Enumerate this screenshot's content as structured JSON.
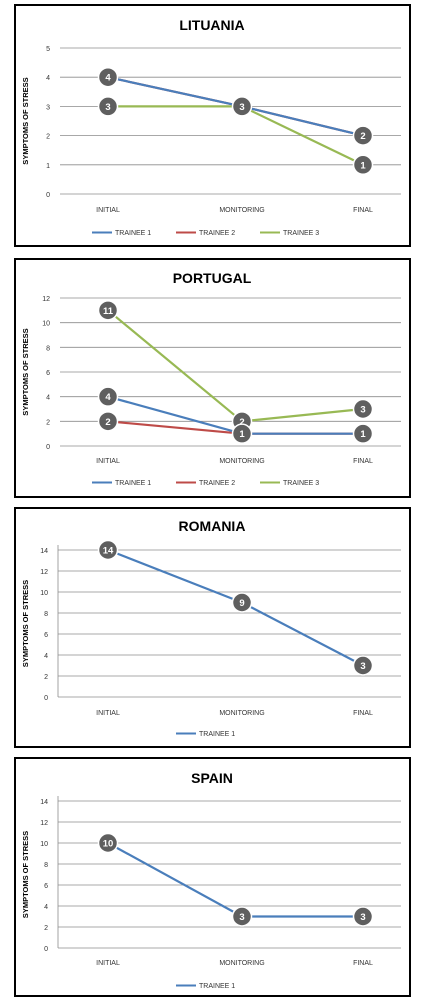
{
  "chart_data": [
    {
      "type": "line",
      "title": "LITUANIA",
      "ylabel": "SYMPTOMS OF STRESS",
      "xlabel": "",
      "categories": [
        "INITIAL",
        "MONITORING",
        "FINAL"
      ],
      "ylim": [
        0,
        5
      ],
      "yticks": [
        0,
        1,
        2,
        3,
        4,
        5
      ],
      "grid": true,
      "legend_position": "bottom",
      "series": [
        {
          "name": "TRAINEE 1",
          "color": "#4a7ebb",
          "values": [
            4,
            3,
            2
          ]
        },
        {
          "name": "TRAINEE 2",
          "color": "#be4b48",
          "values": [
            4,
            3,
            2
          ]
        },
        {
          "name": "TRAINEE 3",
          "color": "#98b954",
          "values": [
            3,
            3,
            1
          ]
        }
      ],
      "data_labels": [
        {
          "category": "INITIAL",
          "value": 4
        },
        {
          "category": "INITIAL",
          "value": 3
        },
        {
          "category": "MONITORING",
          "value": 3
        },
        {
          "category": "FINAL",
          "value": 2
        },
        {
          "category": "FINAL",
          "value": 1
        }
      ]
    },
    {
      "type": "line",
      "title": "PORTUGAL",
      "ylabel": "SYMPTOMS OF STRESS",
      "xlabel": "",
      "categories": [
        "INITIAL",
        "MONITORING",
        "FINAL"
      ],
      "ylim": [
        0,
        12
      ],
      "yticks": [
        0,
        2,
        4,
        6,
        8,
        10,
        12
      ],
      "grid": true,
      "legend_position": "bottom",
      "series": [
        {
          "name": "TRAINEE 1",
          "color": "#4a7ebb",
          "values": [
            4,
            1,
            1
          ]
        },
        {
          "name": "TRAINEE 2",
          "color": "#be4b48",
          "values": [
            2,
            1,
            1
          ]
        },
        {
          "name": "TRAINEE 3",
          "color": "#98b954",
          "values": [
            11,
            2,
            3
          ]
        }
      ],
      "data_labels": [
        {
          "category": "INITIAL",
          "value": 11
        },
        {
          "category": "INITIAL",
          "value": 4
        },
        {
          "category": "INITIAL",
          "value": 2
        },
        {
          "category": "MONITORING",
          "value": 2
        },
        {
          "category": "MONITORING",
          "value": 1
        },
        {
          "category": "FINAL",
          "value": 3
        },
        {
          "category": "FINAL",
          "value": 1
        }
      ]
    },
    {
      "type": "line",
      "title": "ROMANIA",
      "ylabel": "SYMPTOMS OF STRESS",
      "xlabel": "",
      "categories": [
        "INITIAL",
        "MONITORING",
        "FINAL"
      ],
      "ylim": [
        0,
        14
      ],
      "yticks": [
        0,
        2,
        4,
        6,
        8,
        10,
        12,
        14
      ],
      "grid": true,
      "legend_position": "bottom",
      "series": [
        {
          "name": "TRAINEE 1",
          "color": "#4a7ebb",
          "values": [
            14,
            9,
            3
          ]
        }
      ],
      "data_labels": [
        {
          "category": "INITIAL",
          "value": 14
        },
        {
          "category": "MONITORING",
          "value": 9
        },
        {
          "category": "FINAL",
          "value": 3
        }
      ]
    },
    {
      "type": "line",
      "title": "SPAIN",
      "ylabel": "SYMPTOMS OF STRESS",
      "xlabel": "",
      "categories": [
        "INITIAL",
        "MONITORING",
        "FINAL"
      ],
      "ylim": [
        0,
        14
      ],
      "yticks": [
        0,
        2,
        4,
        6,
        8,
        10,
        12,
        14
      ],
      "grid": true,
      "legend_position": "bottom",
      "series": [
        {
          "name": "TRAINEE 1",
          "color": "#4a7ebb",
          "values": [
            10,
            3,
            3
          ]
        }
      ],
      "data_labels": [
        {
          "category": "INITIAL",
          "value": 10
        },
        {
          "category": "MONITORING",
          "value": 3
        },
        {
          "category": "FINAL",
          "value": 3
        }
      ]
    }
  ]
}
